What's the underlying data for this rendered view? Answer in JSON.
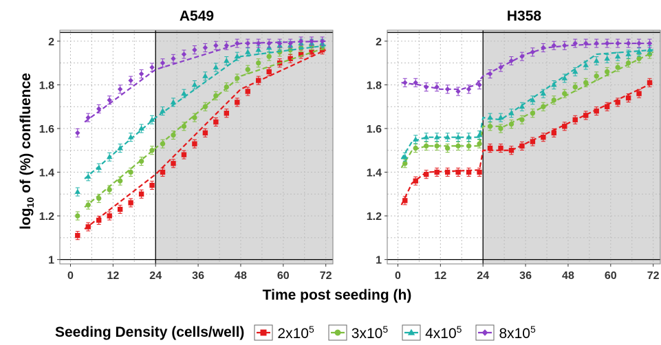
{
  "chart_data": [
    {
      "type": "scatter",
      "title": "A549",
      "x_ticks": [
        "0",
        "12",
        "24",
        "36",
        "48",
        "60",
        "72"
      ],
      "y_ticks": [
        "1",
        "1.2",
        "1.4",
        "1.6",
        "1.8",
        "2"
      ],
      "xlim": [
        -3,
        74
      ],
      "ylim": [
        0.98,
        2.05
      ],
      "shaded_region": [
        24,
        74
      ],
      "vline_x": 24,
      "hlines": [
        1,
        2.04
      ],
      "grid": true,
      "series": [
        {
          "name": "2x10^5",
          "color": "#E41A1C",
          "marker": "square",
          "x": [
            2,
            5,
            8,
            11,
            14,
            17,
            20,
            23,
            26,
            29,
            32,
            35,
            38,
            41,
            44,
            47,
            50,
            53,
            56,
            59,
            62,
            65,
            68,
            71
          ],
          "y": [
            1.11,
            1.15,
            1.18,
            1.2,
            1.23,
            1.26,
            1.3,
            1.34,
            1.4,
            1.44,
            1.48,
            1.53,
            1.58,
            1.63,
            1.67,
            1.72,
            1.77,
            1.82,
            1.86,
            1.9,
            1.92,
            1.94,
            1.95,
            1.96
          ],
          "fit_x": [
            4,
            24,
            48,
            72
          ],
          "fit_y": [
            1.14,
            1.39,
            1.78,
            1.96
          ]
        },
        {
          "name": "3x10^5",
          "color": "#7FBF3F",
          "marker": "circle",
          "x": [
            2,
            5,
            8,
            11,
            14,
            17,
            20,
            23,
            26,
            29,
            32,
            35,
            38,
            41,
            44,
            47,
            50,
            53,
            56,
            59,
            62,
            65,
            68,
            71
          ],
          "y": [
            1.2,
            1.25,
            1.28,
            1.32,
            1.36,
            1.4,
            1.45,
            1.5,
            1.53,
            1.57,
            1.61,
            1.65,
            1.7,
            1.75,
            1.79,
            1.83,
            1.87,
            1.9,
            1.93,
            1.95,
            1.96,
            1.97,
            1.98,
            1.98
          ],
          "fit_x": [
            4,
            24,
            48,
            72
          ],
          "fit_y": [
            1.24,
            1.51,
            1.84,
            1.97
          ]
        },
        {
          "name": "4x10^5",
          "color": "#20B2AA",
          "marker": "triangle",
          "x": [
            2,
            5,
            8,
            11,
            14,
            17,
            20,
            23,
            26,
            29,
            32,
            35,
            38,
            41,
            44,
            47,
            50,
            53,
            56,
            59,
            62,
            65,
            68,
            71
          ],
          "y": [
            1.31,
            1.38,
            1.42,
            1.47,
            1.51,
            1.56,
            1.6,
            1.64,
            1.68,
            1.72,
            1.76,
            1.8,
            1.84,
            1.88,
            1.91,
            1.93,
            1.95,
            1.96,
            1.97,
            1.98,
            1.98,
            1.99,
            1.99,
            1.99
          ],
          "fit_x": [
            4,
            24,
            48,
            72
          ],
          "fit_y": [
            1.37,
            1.65,
            1.93,
            1.98
          ]
        },
        {
          "name": "8x10^5",
          "color": "#8B3FC8",
          "marker": "diamond",
          "x": [
            2,
            5,
            8,
            11,
            14,
            17,
            20,
            23,
            26,
            29,
            32,
            35,
            38,
            41,
            44,
            47,
            50,
            53,
            56,
            59,
            62,
            65,
            68,
            71
          ],
          "y": [
            1.58,
            1.65,
            1.69,
            1.73,
            1.78,
            1.82,
            1.85,
            1.88,
            1.9,
            1.92,
            1.94,
            1.96,
            1.97,
            1.98,
            1.98,
            1.99,
            1.99,
            1.99,
            1.99,
            1.99,
            1.99,
            2.0,
            2.0,
            2.0
          ],
          "fit_x": [
            4,
            24,
            48,
            72
          ],
          "fit_y": [
            1.63,
            1.87,
            1.99,
            2.0
          ]
        }
      ]
    },
    {
      "type": "scatter",
      "title": "H358",
      "x_ticks": [
        "0",
        "12",
        "24",
        "36",
        "48",
        "60",
        "72"
      ],
      "y_ticks": [
        "1",
        "1.2",
        "1.4",
        "1.6",
        "1.8",
        "2"
      ],
      "xlim": [
        -3,
        74
      ],
      "ylim": [
        0.98,
        2.05
      ],
      "shaded_region": [
        24,
        74
      ],
      "vline_x": 24,
      "hlines": [
        1,
        2.04
      ],
      "grid": true,
      "series": [
        {
          "name": "2x10^5",
          "color": "#E41A1C",
          "marker": "square",
          "x": [
            2,
            5,
            8,
            11,
            14,
            17,
            20,
            23,
            26,
            29,
            32,
            35,
            38,
            41,
            44,
            47,
            50,
            53,
            56,
            59,
            62,
            65,
            68,
            71
          ],
          "y": [
            1.27,
            1.36,
            1.39,
            1.4,
            1.4,
            1.4,
            1.4,
            1.4,
            1.51,
            1.51,
            1.5,
            1.52,
            1.54,
            1.56,
            1.58,
            1.61,
            1.64,
            1.66,
            1.68,
            1.7,
            1.72,
            1.74,
            1.76,
            1.81
          ],
          "fit_x": [
            1,
            4,
            8,
            23,
            24,
            32,
            72
          ],
          "fit_y": [
            1.25,
            1.35,
            1.4,
            1.41,
            1.5,
            1.5,
            1.81
          ]
        },
        {
          "name": "3x10^5",
          "color": "#7FBF3F",
          "marker": "circle",
          "x": [
            2,
            5,
            8,
            11,
            14,
            17,
            20,
            23,
            26,
            29,
            32,
            35,
            38,
            41,
            44,
            47,
            50,
            53,
            56,
            59,
            62,
            65,
            68,
            71
          ],
          "y": [
            1.44,
            1.51,
            1.52,
            1.52,
            1.51,
            1.52,
            1.52,
            1.53,
            1.61,
            1.6,
            1.62,
            1.64,
            1.67,
            1.7,
            1.73,
            1.76,
            1.79,
            1.81,
            1.84,
            1.86,
            1.88,
            1.9,
            1.92,
            1.94
          ],
          "fit_x": [
            1,
            4,
            8,
            23,
            24,
            30,
            72
          ],
          "fit_y": [
            1.42,
            1.5,
            1.52,
            1.52,
            1.61,
            1.61,
            1.95
          ]
        },
        {
          "name": "4x10^5",
          "color": "#20B2AA",
          "marker": "triangle",
          "x": [
            2,
            5,
            8,
            11,
            14,
            17,
            20,
            23,
            26,
            29,
            32,
            35,
            38,
            41,
            44,
            47,
            50,
            53,
            56,
            59,
            62,
            65,
            68,
            71
          ],
          "y": [
            1.47,
            1.55,
            1.56,
            1.56,
            1.56,
            1.56,
            1.56,
            1.57,
            1.65,
            1.65,
            1.67,
            1.7,
            1.73,
            1.76,
            1.8,
            1.83,
            1.86,
            1.89,
            1.91,
            1.92,
            1.93,
            1.94,
            1.95,
            1.96
          ],
          "fit_x": [
            1,
            4,
            8,
            23,
            24,
            29,
            56,
            72
          ],
          "fit_y": [
            1.46,
            1.54,
            1.56,
            1.56,
            1.65,
            1.64,
            1.94,
            1.96
          ]
        },
        {
          "name": "8x10^5",
          "color": "#8B3FC8",
          "marker": "diamond",
          "x": [
            2,
            5,
            8,
            11,
            14,
            17,
            20,
            23,
            26,
            29,
            32,
            35,
            38,
            41,
            44,
            47,
            50,
            53,
            56,
            59,
            62,
            65,
            68,
            71
          ],
          "y": [
            1.81,
            1.81,
            1.79,
            1.79,
            1.78,
            1.77,
            1.78,
            1.8,
            1.85,
            1.88,
            1.91,
            1.93,
            1.95,
            1.97,
            1.98,
            1.98,
            1.99,
            1.99,
            1.99,
            1.99,
            1.99,
            1.99,
            1.99,
            1.99
          ],
          "fit_x": [
            1,
            6,
            12,
            18,
            22,
            24,
            30,
            36,
            42,
            48,
            60,
            72
          ],
          "fit_y": [
            1.81,
            1.8,
            1.78,
            1.78,
            1.8,
            1.84,
            1.89,
            1.94,
            1.97,
            1.98,
            1.99,
            1.99
          ]
        }
      ]
    }
  ],
  "axes": {
    "xlabel": "Time post seeding (h)",
    "ylabel_pre": "log",
    "ylabel_sub": "10",
    "ylabel_post": " of (%) confluence"
  },
  "legend": {
    "title": "Seeding Density (cells/well)",
    "items": [
      {
        "base": "2x10",
        "exp": "5",
        "color": "#E41A1C",
        "marker": "square"
      },
      {
        "base": "3x10",
        "exp": "5",
        "color": "#7FBF3F",
        "marker": "circle"
      },
      {
        "base": "4x10",
        "exp": "5",
        "color": "#20B2AA",
        "marker": "triangle"
      },
      {
        "base": "8x10",
        "exp": "5",
        "color": "#8B3FC8",
        "marker": "diamond"
      }
    ]
  }
}
